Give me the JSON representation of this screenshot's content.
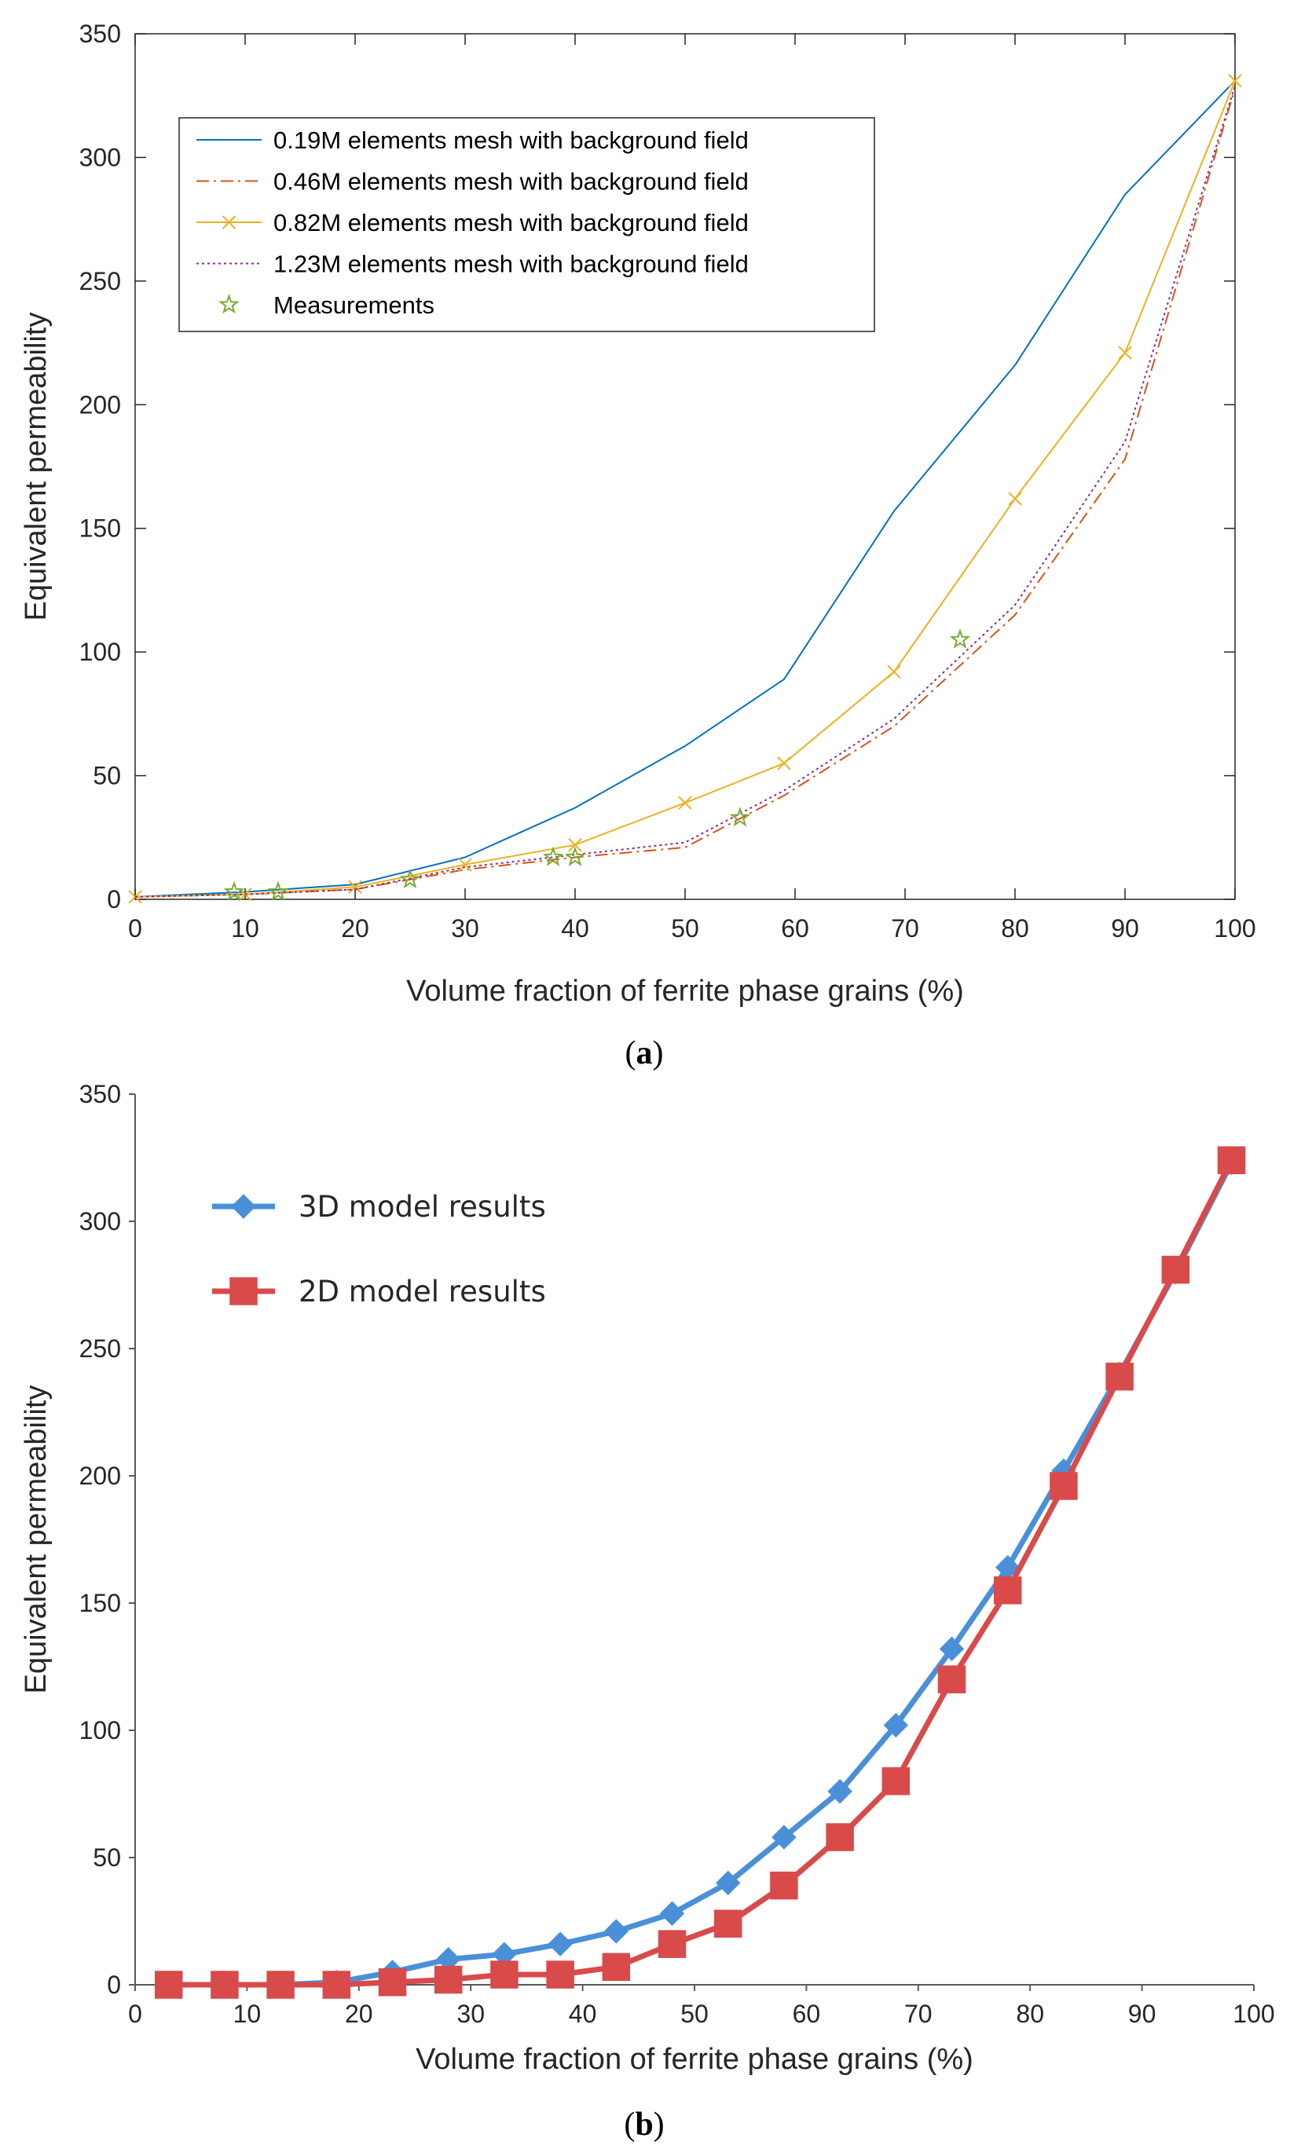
{
  "chart_data": [
    {
      "type": "line",
      "caption_open": "(",
      "caption_letter": "a",
      "caption_close": ")",
      "xlabel": "Volume fraction of ferrite phase grains (%)",
      "ylabel": "Equivalent permeability",
      "xlim": [
        0,
        100
      ],
      "ylim": [
        0,
        350
      ],
      "xticks": [
        "0",
        "10",
        "20",
        "30",
        "40",
        "50",
        "60",
        "70",
        "80",
        "90",
        "100"
      ],
      "yticks": [
        "0",
        "50",
        "100",
        "150",
        "200",
        "250",
        "300",
        "350"
      ],
      "legend_position": "top-left",
      "series": [
        {
          "name": "0.19M elements mesh with background field",
          "color": "#0072BD",
          "style": "solid",
          "marker": "none",
          "x": [
            0,
            10,
            20,
            30,
            40,
            50,
            59,
            69,
            80,
            90,
            100
          ],
          "y": [
            1,
            3,
            6,
            17,
            37,
            62,
            89,
            157,
            216,
            285,
            331
          ]
        },
        {
          "name": "0.46M elements mesh with background field",
          "color": "#D95319",
          "style": "dashdot",
          "marker": "none",
          "x": [
            0,
            10,
            20,
            30,
            40,
            50,
            59,
            69,
            80,
            90,
            100
          ],
          "y": [
            1,
            2,
            4,
            12,
            17,
            21,
            42,
            70,
            115,
            178,
            328
          ]
        },
        {
          "name": "0.82M elements mesh with background field",
          "color": "#EDB120",
          "style": "solid",
          "marker": "x",
          "x": [
            0,
            10,
            20,
            30,
            40,
            50,
            59,
            69,
            80,
            90,
            100
          ],
          "y": [
            1,
            2,
            5,
            14,
            22,
            39,
            55,
            92,
            162,
            221,
            331
          ]
        },
        {
          "name": "1.23M elements mesh with background field",
          "color": "#7E2F8E",
          "style": "dotted",
          "marker": "none",
          "x": [
            0,
            10,
            20,
            30,
            40,
            50,
            59,
            69,
            80,
            90,
            100
          ],
          "y": [
            1,
            2,
            4,
            13,
            18,
            23,
            44,
            73,
            119,
            185,
            329
          ]
        },
        {
          "name": "Measurements",
          "color": "#77AC30",
          "style": "none",
          "marker": "star",
          "x": [
            9,
            13,
            25,
            38,
            40,
            55,
            75
          ],
          "y": [
            3,
            3,
            8,
            17,
            17,
            33,
            105
          ]
        }
      ]
    },
    {
      "type": "line",
      "caption_open": "(",
      "caption_letter": "b",
      "caption_close": ")",
      "xlabel": "Volume fraction of ferrite phase grains (%)",
      "ylabel": "Equivalent permeability",
      "xlim": [
        0,
        100
      ],
      "ylim": [
        0,
        350
      ],
      "xticks": [
        "0",
        "10",
        "20",
        "30",
        "40",
        "50",
        "60",
        "70",
        "80",
        "90",
        "100"
      ],
      "yticks": [
        "0",
        "50",
        "100",
        "150",
        "200",
        "250",
        "300",
        "350"
      ],
      "legend_position": "top-left",
      "series": [
        {
          "name": "3D model results",
          "color": "#4A90D9",
          "marker": "diamond",
          "x": [
            3,
            8,
            13,
            18,
            23,
            28,
            33,
            38,
            43,
            48,
            53,
            58,
            63,
            68,
            73,
            78,
            83,
            88,
            93,
            98
          ],
          "y": [
            0,
            0,
            0,
            1,
            5,
            10,
            12,
            16,
            21,
            28,
            40,
            58,
            76,
            102,
            132,
            164,
            202,
            240,
            280,
            323
          ]
        },
        {
          "name": "2D model results",
          "color": "#D94A4A",
          "marker": "square",
          "x": [
            3,
            8,
            13,
            18,
            23,
            28,
            33,
            38,
            43,
            48,
            53,
            58,
            63,
            68,
            73,
            78,
            83,
            88,
            93,
            98
          ],
          "y": [
            0,
            0,
            0,
            0,
            1,
            2,
            4,
            4,
            7,
            16,
            24,
            39,
            58,
            80,
            120,
            155,
            196,
            239,
            281,
            324
          ]
        }
      ]
    }
  ]
}
